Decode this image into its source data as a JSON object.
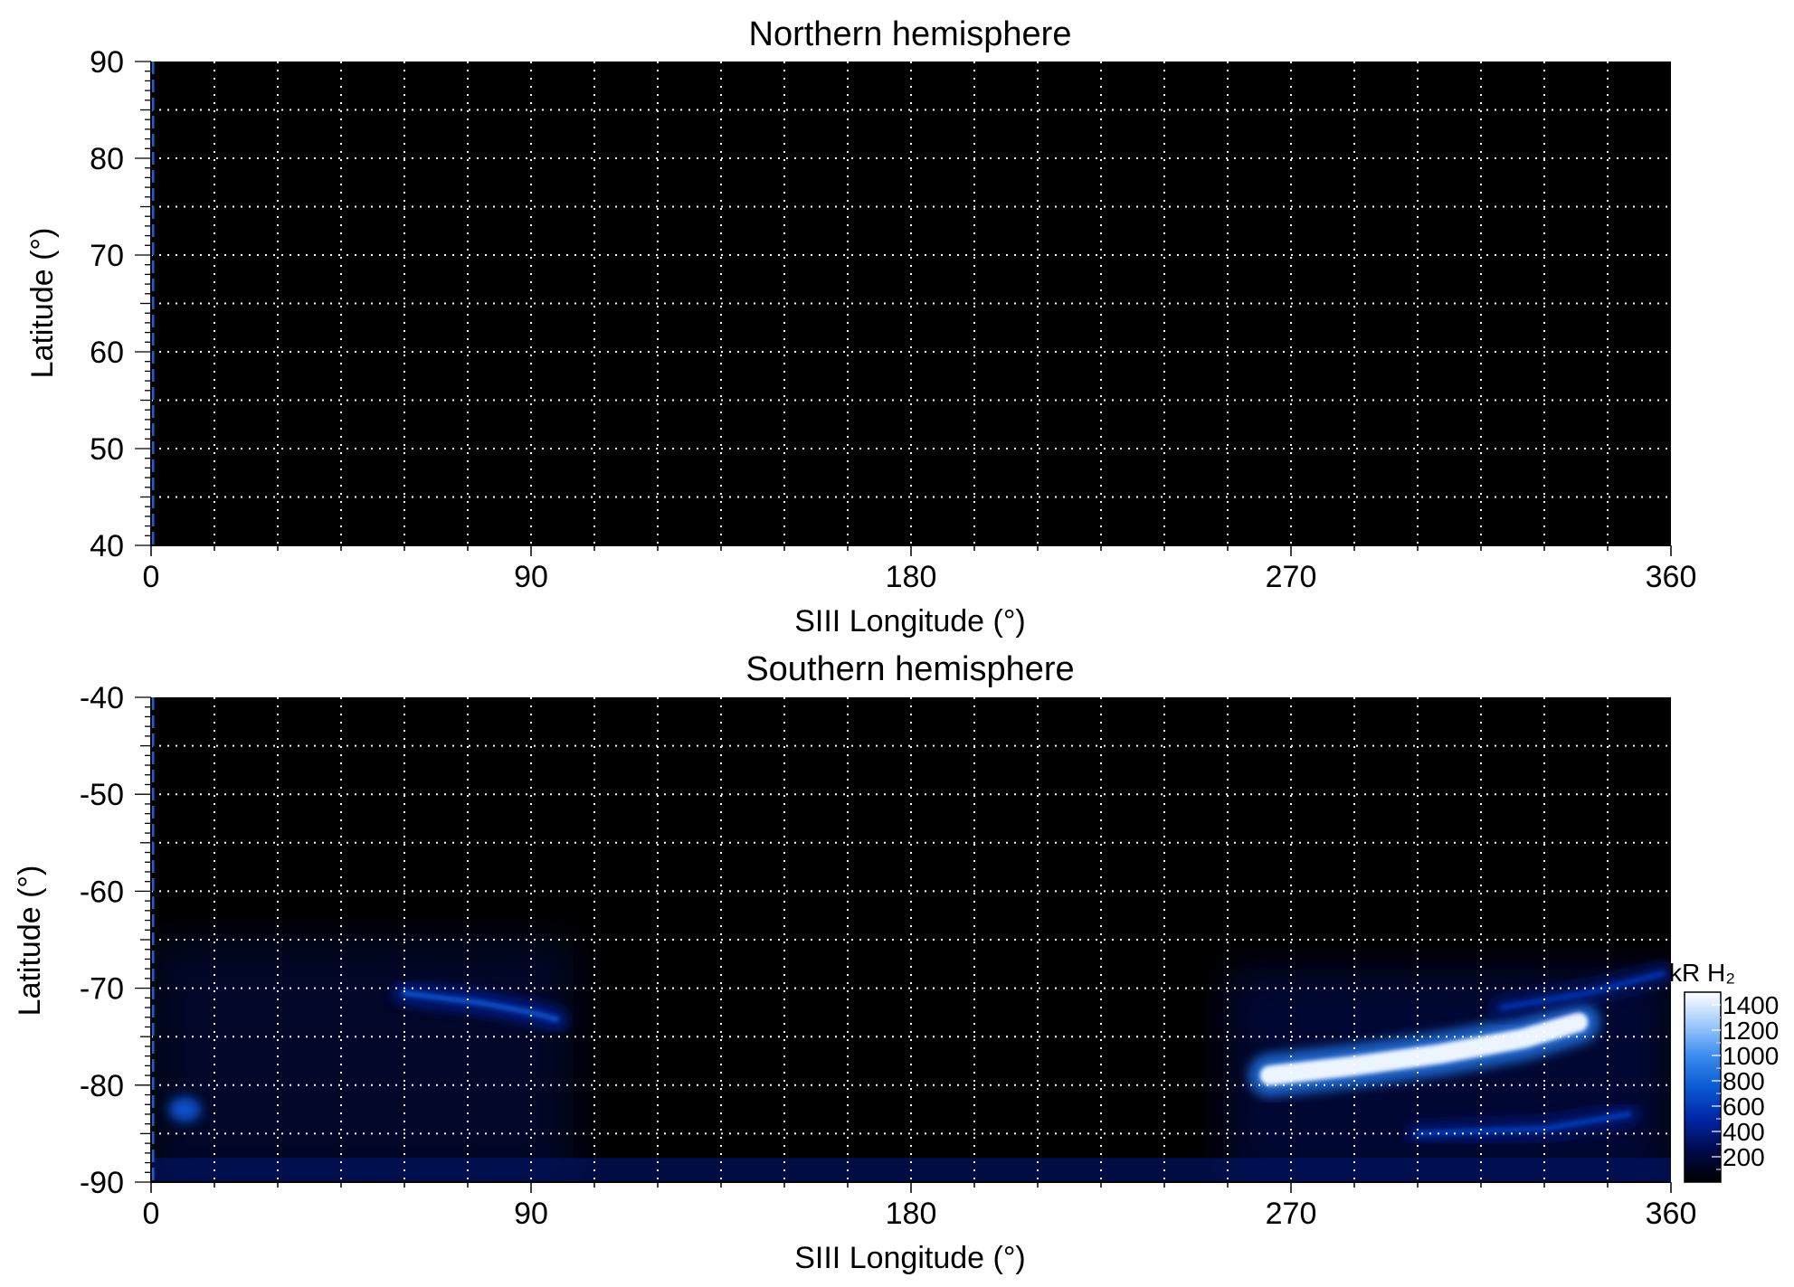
{
  "chart_data": [
    {
      "type": "heatmap",
      "title": "Northern hemisphere",
      "xlabel": "SIII Longitude (°)",
      "ylabel": "Latitude (°)",
      "xlim": [
        0,
        360
      ],
      "ylim": [
        40,
        90
      ],
      "xticks": [
        0,
        90,
        180,
        270,
        360
      ],
      "yticks": [
        40,
        50,
        60,
        70,
        80,
        90
      ],
      "grid": true,
      "grid_x_step": 15,
      "grid_y_step": 5,
      "colormap": [
        "#000000",
        "#000a4a",
        "#0026a6",
        "#0a5ad2",
        "#3c8cf0",
        "#a0ccfa",
        "#ffffff"
      ],
      "features": []
    },
    {
      "type": "heatmap",
      "title": "Southern hemisphere",
      "xlabel": "SIII Longitude (°)",
      "ylabel": "Latitude (°)",
      "xlim": [
        0,
        360
      ],
      "ylim": [
        -90,
        -40
      ],
      "xticks": [
        0,
        90,
        180,
        270,
        360
      ],
      "yticks": [
        -90,
        -80,
        -70,
        -60,
        -50,
        -40
      ],
      "grid": true,
      "grid_x_step": 15,
      "grid_y_step": 5,
      "colormap": [
        "#000000",
        "#000a4a",
        "#0026a6",
        "#0a5ad2",
        "#3c8cf0",
        "#a0ccfa",
        "#ffffff"
      ],
      "features": [
        {
          "kind": "diffuse-region",
          "lon_range": [
            0,
            100
          ],
          "lat_range": [
            -90,
            -65
          ],
          "intensity": 250
        },
        {
          "kind": "diffuse-region",
          "lon_range": [
            255,
            360
          ],
          "lat_range": [
            -90,
            -68
          ],
          "intensity": 300
        },
        {
          "kind": "arc",
          "points": [
            [
              60,
              -70.5
            ],
            [
              78,
              -71.5
            ],
            [
              90,
              -72.5
            ],
            [
              96,
              -73.2
            ]
          ],
          "intensity": 700
        },
        {
          "kind": "arc",
          "points": [
            [
              265,
              -79
            ],
            [
              285,
              -78
            ],
            [
              305,
              -76.8
            ],
            [
              325,
              -75.2
            ],
            [
              338,
              -73.5
            ]
          ],
          "intensity": 1450
        },
        {
          "kind": "arc",
          "points": [
            [
              320,
              -72
            ],
            [
              340,
              -70.5
            ],
            [
              358,
              -68.5
            ]
          ],
          "intensity": 550
        },
        {
          "kind": "arc",
          "points": [
            [
              300,
              -85
            ],
            [
              330,
              -84.5
            ],
            [
              350,
              -83
            ]
          ],
          "intensity": 600
        },
        {
          "kind": "spot",
          "lon": 8,
          "lat": -82.5,
          "intensity": 700
        },
        {
          "kind": "band",
          "lon_range": [
            0,
            360
          ],
          "lat_range": [
            -90,
            -87.5
          ],
          "intensity": 350
        }
      ]
    }
  ],
  "colorbar": {
    "label": "kR H₂",
    "range": [
      0,
      1500
    ],
    "ticks": [
      200,
      400,
      600,
      800,
      1000,
      1200,
      1400
    ]
  }
}
